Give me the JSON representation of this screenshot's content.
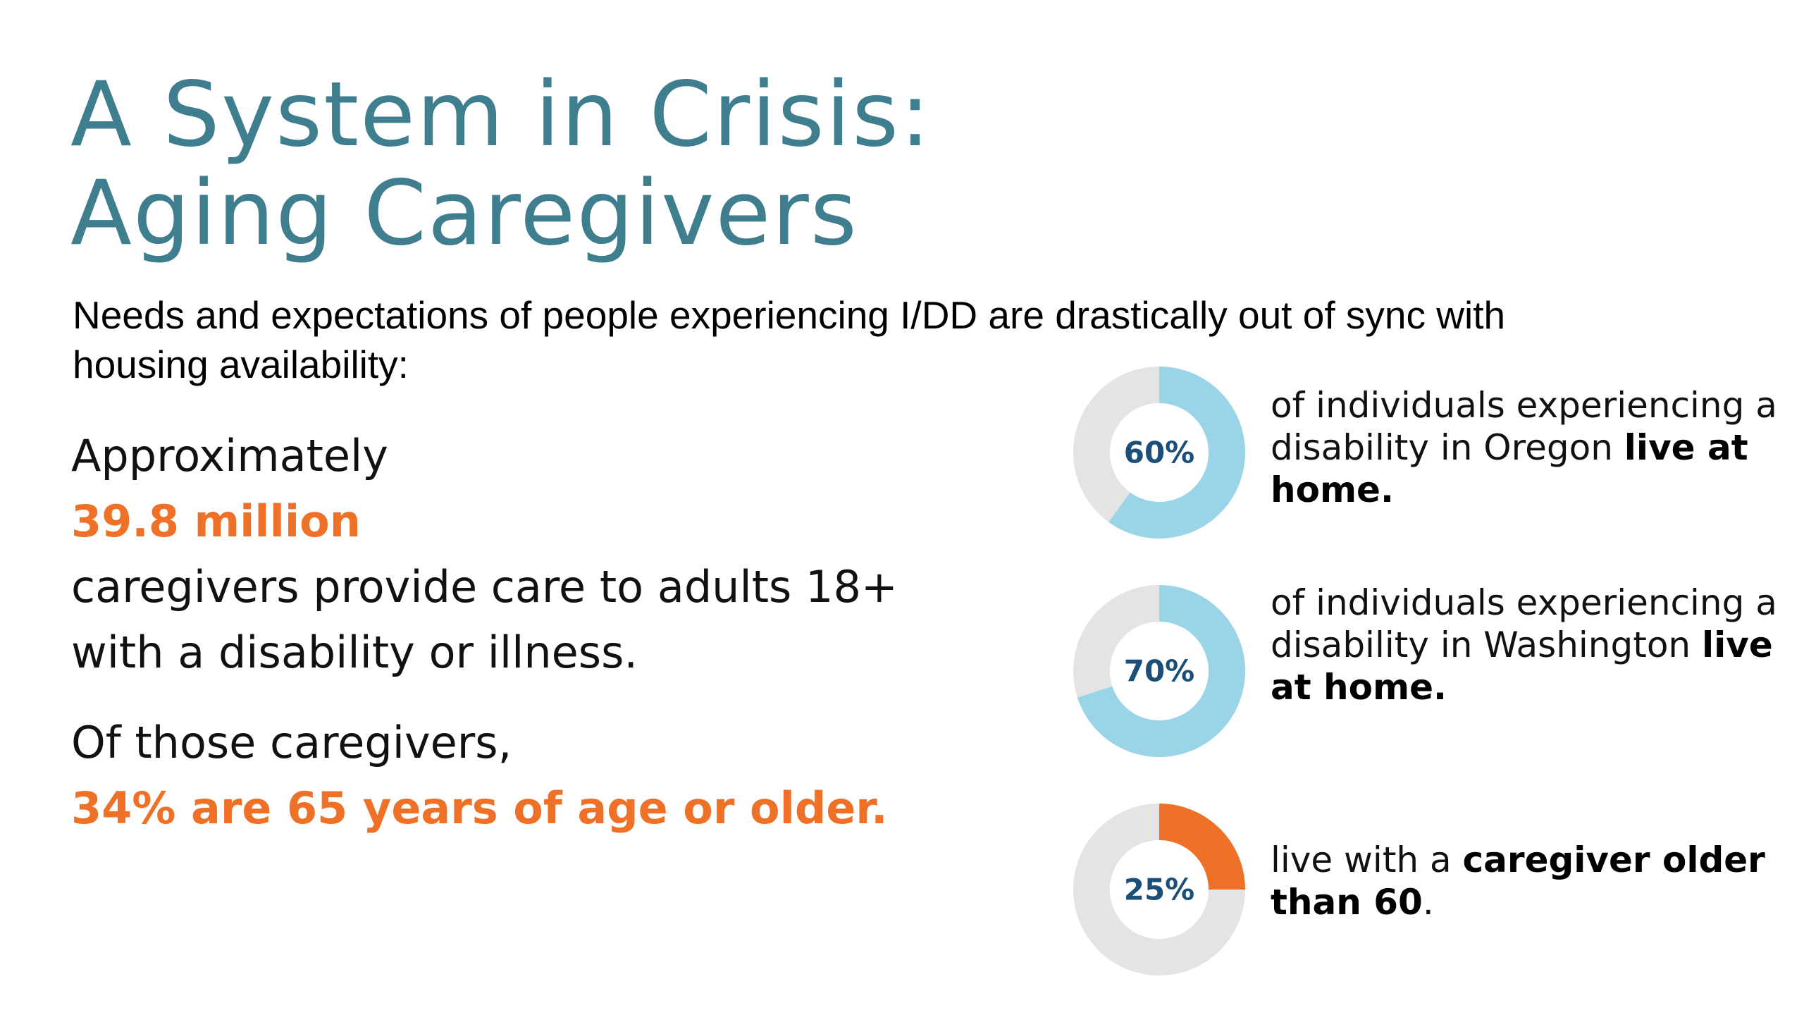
{
  "title": {
    "line1": "A System in Crisis:",
    "line2": "Aging Caregivers"
  },
  "subtitle": "Needs and expectations of people experiencing I/DD are drastically out of sync with housing availability:",
  "left": {
    "approx": "Approximately",
    "count": "39.8 million",
    "caregivers_line1": "caregivers provide care to adults 18+",
    "caregivers_line2": "with a disability or illness.",
    "of_those": "Of those caregivers,",
    "older": "34% are 65 years of age or older."
  },
  "stats": [
    {
      "percent": 60,
      "label": "60%",
      "color": "#9ad4e9",
      "text_plain": "of individuals experiencing a disability in Oregon ",
      "text_bold": "live at home.",
      "text_after": ""
    },
    {
      "percent": 70,
      "label": "70%",
      "color": "#9ad4e9",
      "text_plain": "of individuals experiencing a disability in Washington ",
      "text_bold": "live at home.",
      "text_after": ""
    },
    {
      "percent": 25,
      "label": "25%",
      "color": "#ee7127",
      "text_plain": "live with a ",
      "text_bold": "caregiver older than 60",
      "text_after": "."
    }
  ],
  "colors": {
    "title": "#3e7e8f",
    "accent": "#ee7127",
    "donut_track": "#e4e4e4",
    "donut_label": "#1b4f7a"
  }
}
